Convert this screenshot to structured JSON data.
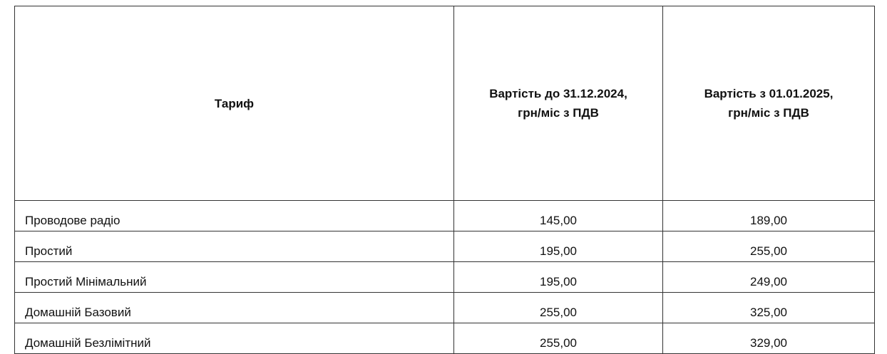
{
  "headers": [
    "Тариф",
    "Вартість до 31.12.2024,\nгрн/міс з ПДВ",
    "Вартість з 01.01.2025,\nгрн/міс з ПДВ"
  ],
  "header_lines": {
    "col2": [
      "Вартість до 31.12.2024,",
      "грн/міс з ПДВ"
    ],
    "col3": [
      "Вартість з 01.01.2025,",
      "грн/міс з ПДВ"
    ]
  },
  "rows": [
    {
      "tariff": "Проводове радіо",
      "before": "145,00",
      "after": "189,00"
    },
    {
      "tariff": "Простий",
      "before": "195,00",
      "after": "255,00"
    },
    {
      "tariff": "Простий Мінімальний",
      "before": "195,00",
      "after": "249,00"
    },
    {
      "tariff": "Домашній Базовий",
      "before": "255,00",
      "after": "325,00"
    },
    {
      "tariff": "Домашній Безлімітний",
      "before": "255,00",
      "after": "329,00"
    }
  ]
}
